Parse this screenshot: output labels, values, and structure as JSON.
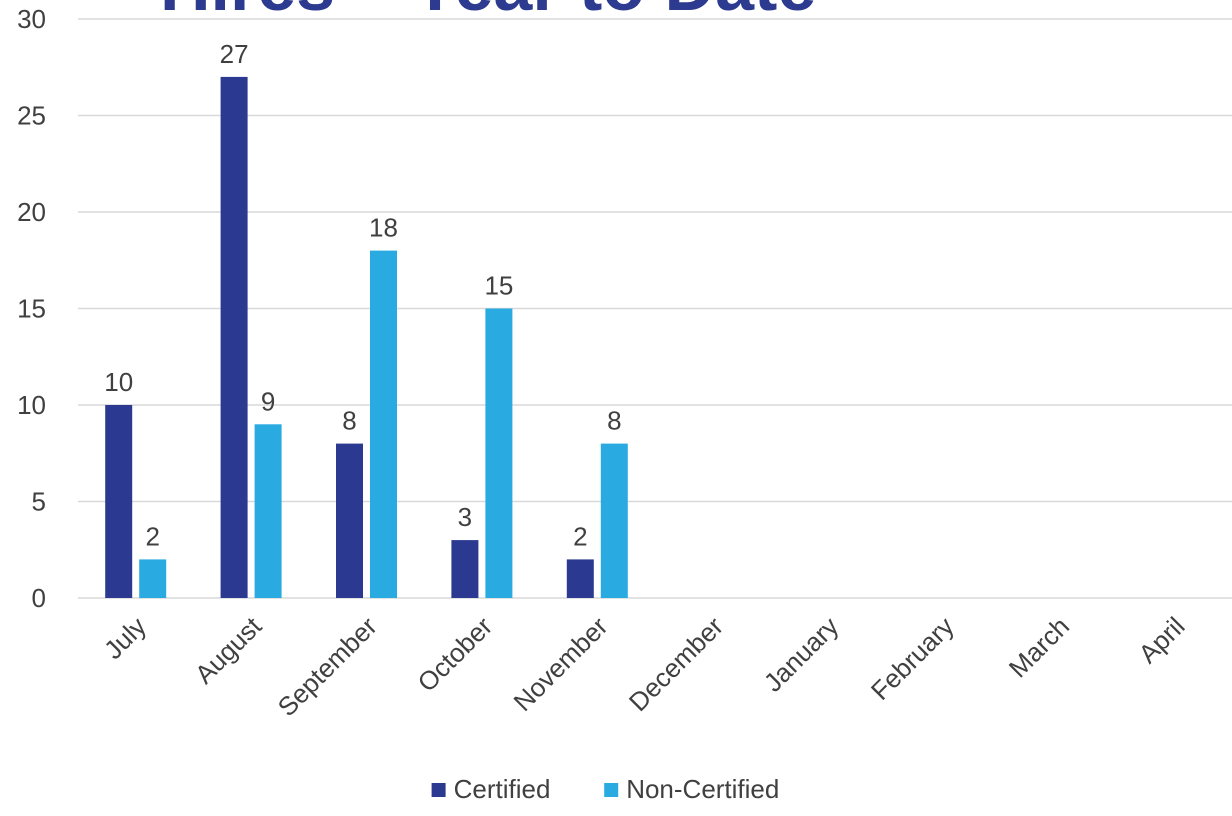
{
  "chart_data": {
    "type": "bar",
    "title": "Hires – Year to Date",
    "categories": [
      "July",
      "August",
      "September",
      "October",
      "November",
      "December",
      "January",
      "February",
      "March",
      "April"
    ],
    "series": [
      {
        "name": "Certified",
        "values": [
          10,
          27,
          8,
          3,
          2,
          null,
          null,
          null,
          null,
          null
        ],
        "color": "#2b3990"
      },
      {
        "name": "Non-Certified",
        "values": [
          2,
          9,
          18,
          15,
          8,
          null,
          null,
          null,
          null,
          null
        ],
        "color": "#29abe2"
      }
    ],
    "yticks": [
      0,
      5,
      10,
      15,
      20,
      25,
      30
    ],
    "ylim": [
      0,
      30
    ],
    "grid": true,
    "legend": "bottom-center",
    "gridline_color": "#d9d9d9"
  }
}
